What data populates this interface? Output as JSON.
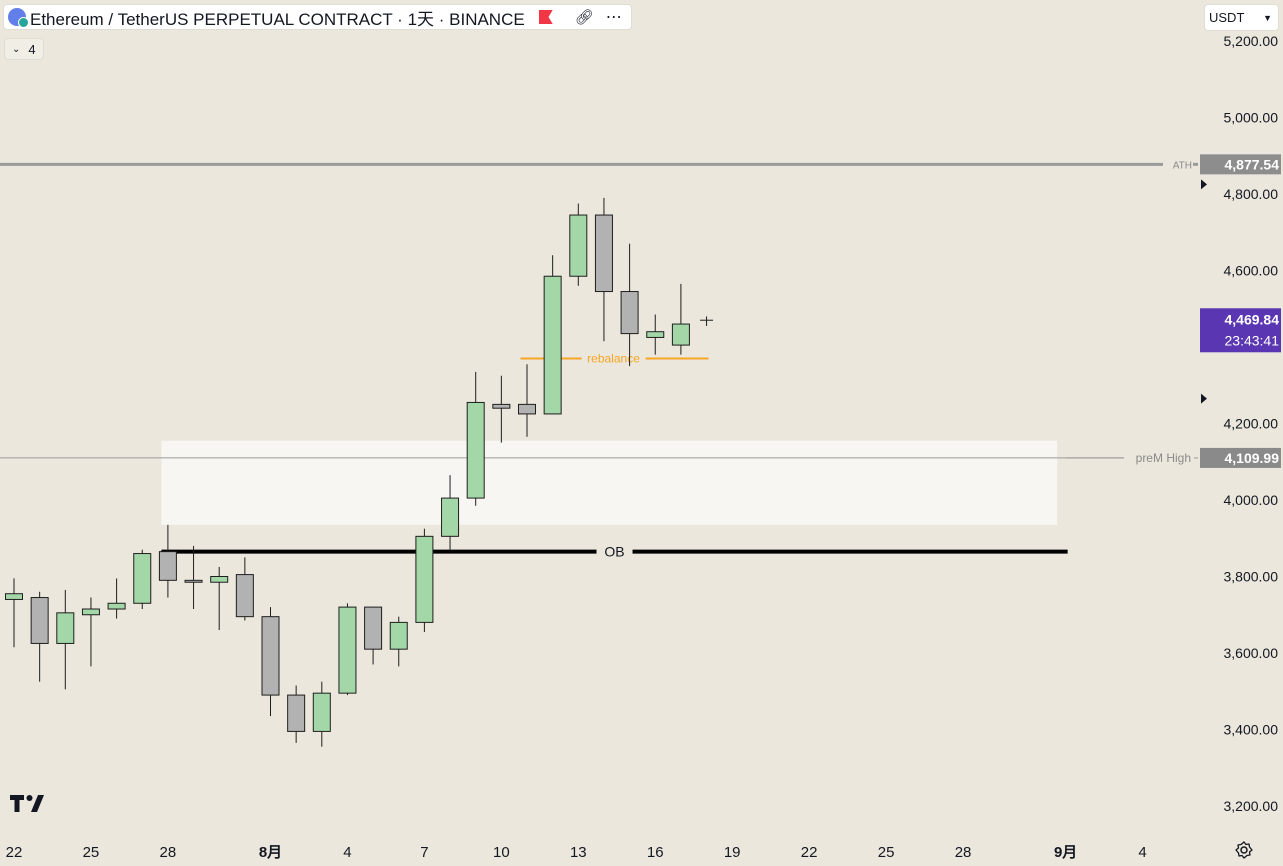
{
  "header": {
    "title": "Ethereum / TetherUS PERPETUAL CONTRACT · 1天 · BINANCE",
    "icons": [
      "ethereum-icon",
      "flag-icon",
      "link-icon",
      "more-icon"
    ]
  },
  "indicators": {
    "count": "4"
  },
  "currency": {
    "label": "USDT"
  },
  "colors": {
    "background": "#ebe7dc",
    "up_candle": "#a3d7a7",
    "down_candle": "#b2b2b2",
    "ath_line": "#9a9a9a",
    "last_price_bg": "#5b36b3",
    "rebalance": "#f5a623",
    "ob_line": "#000000"
  },
  "chart_data": {
    "type": "candlestick",
    "y_ticks": [
      "5,200.00",
      "5,000.00",
      "4,800.00",
      "4,600.00",
      "4,200.00",
      "4,000.00",
      "3,800.00",
      "3,600.00",
      "3,400.00",
      "3,200.00"
    ],
    "y_tick_values": [
      5200,
      5000,
      4800,
      4600,
      4200,
      4000,
      3800,
      3600,
      3400,
      3200
    ],
    "ylim": [
      3160,
      5270
    ],
    "x_ticks": [
      {
        "label": "22",
        "index": 0
      },
      {
        "label": "25",
        "index": 3
      },
      {
        "label": "28",
        "index": 6
      },
      {
        "label": "8月",
        "index": 10
      },
      {
        "label": "4",
        "index": 13
      },
      {
        "label": "7",
        "index": 16
      },
      {
        "label": "10",
        "index": 19
      },
      {
        "label": "13",
        "index": 22
      },
      {
        "label": "16",
        "index": 25
      },
      {
        "label": "19",
        "index": 28
      },
      {
        "label": "22",
        "index": 31
      },
      {
        "label": "25",
        "index": 34
      },
      {
        "label": "28",
        "index": 37
      },
      {
        "label": "9月",
        "index": 41
      },
      {
        "label": "4",
        "index": 44
      }
    ],
    "candles": [
      {
        "o": 3740,
        "h": 3795,
        "l": 3615,
        "c": 3755
      },
      {
        "o": 3745,
        "h": 3760,
        "l": 3525,
        "c": 3625
      },
      {
        "o": 3625,
        "h": 3765,
        "l": 3505,
        "c": 3705
      },
      {
        "o": 3700,
        "h": 3745,
        "l": 3565,
        "c": 3715
      },
      {
        "o": 3715,
        "h": 3795,
        "l": 3690,
        "c": 3730
      },
      {
        "o": 3730,
        "h": 3870,
        "l": 3715,
        "c": 3860
      },
      {
        "o": 3865,
        "h": 3935,
        "l": 3745,
        "c": 3790
      },
      {
        "o": 3790,
        "h": 3880,
        "l": 3715,
        "c": 3785
      },
      {
        "o": 3785,
        "h": 3825,
        "l": 3660,
        "c": 3800
      },
      {
        "o": 3805,
        "h": 3850,
        "l": 3685,
        "c": 3695
      },
      {
        "o": 3695,
        "h": 3720,
        "l": 3435,
        "c": 3490
      },
      {
        "o": 3490,
        "h": 3515,
        "l": 3365,
        "c": 3395
      },
      {
        "o": 3395,
        "h": 3525,
        "l": 3355,
        "c": 3495
      },
      {
        "o": 3495,
        "h": 3730,
        "l": 3490,
        "c": 3720
      },
      {
        "o": 3720,
        "h": 3720,
        "l": 3570,
        "c": 3610
      },
      {
        "o": 3610,
        "h": 3695,
        "l": 3565,
        "c": 3680
      },
      {
        "o": 3680,
        "h": 3925,
        "l": 3655,
        "c": 3905
      },
      {
        "o": 3905,
        "h": 4065,
        "l": 3870,
        "c": 4005
      },
      {
        "o": 4005,
        "h": 4335,
        "l": 3985,
        "c": 4255
      },
      {
        "o": 4250,
        "h": 4325,
        "l": 4150,
        "c": 4240
      },
      {
        "o": 4250,
        "h": 4355,
        "l": 4165,
        "c": 4225
      },
      {
        "o": 4225,
        "h": 4640,
        "l": 4225,
        "c": 4585
      },
      {
        "o": 4585,
        "h": 4775,
        "l": 4560,
        "c": 4745
      },
      {
        "o": 4745,
        "h": 4790,
        "l": 4415,
        "c": 4545
      },
      {
        "o": 4545,
        "h": 4670,
        "l": 4350,
        "c": 4435
      },
      {
        "o": 4425,
        "h": 4485,
        "l": 4380,
        "c": 4440
      },
      {
        "o": 4405,
        "h": 4565,
        "l": 4380,
        "c": 4460
      },
      {
        "o": 4465,
        "h": 4480,
        "l": 4455,
        "c": 4470
      }
    ],
    "horizontal_levels": [
      {
        "name": "ATH",
        "value": 4877.54,
        "price_label": "4,877.54"
      },
      {
        "name": "preM  High",
        "value": 4109.99,
        "price_label": "4,109.99"
      }
    ],
    "last_price": {
      "value": 4469.84,
      "price_label": "4,469.84",
      "countdown": "23:43:41"
    },
    "annotations": [
      {
        "text": "rebalance",
        "value": 4370,
        "from_index": 20,
        "to_index": 27
      },
      {
        "text": "OB",
        "value": 3865,
        "from_index": 6,
        "to_index": 41
      }
    ],
    "zones": [
      {
        "from_index": 6,
        "to_index": 41,
        "top": 4155,
        "bottom": 3935
      }
    ]
  }
}
